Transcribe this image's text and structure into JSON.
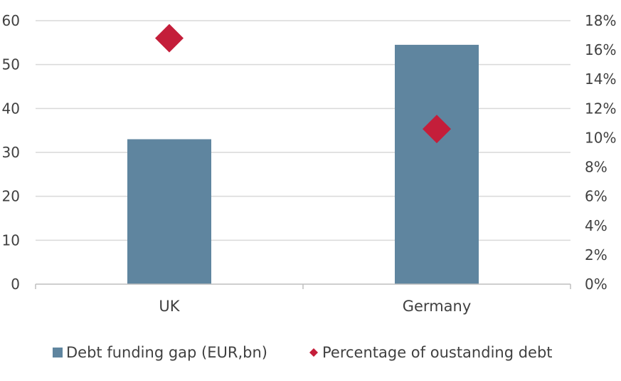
{
  "chart_data": {
    "type": "bar",
    "title": "",
    "xlabel": "",
    "ylabel": "",
    "y2label": "",
    "categories": [
      "UK",
      "Germany"
    ],
    "series": [
      {
        "name": "Debt funding gap (EUR,bn)",
        "kind": "bar",
        "axis": "left",
        "color": "#5F859F",
        "values": [
          33,
          54.5
        ]
      },
      {
        "name": "Percentage of oustanding debt",
        "kind": "scatter",
        "marker": "diamond",
        "axis": "right",
        "color": "#C41E3A",
        "values": [
          16.8,
          10.6
        ]
      }
    ],
    "ylim": [
      0,
      60
    ],
    "yticks": [
      "0",
      "10",
      "20",
      "30",
      "40",
      "50",
      "60"
    ],
    "y2lim": [
      0,
      18
    ],
    "y2ticks": [
      "0%",
      "2%",
      "4%",
      "6%",
      "8%",
      "10%",
      "12%",
      "14%",
      "16%",
      "18%"
    ],
    "grid": "horizontal",
    "legend_position": "bottom"
  }
}
